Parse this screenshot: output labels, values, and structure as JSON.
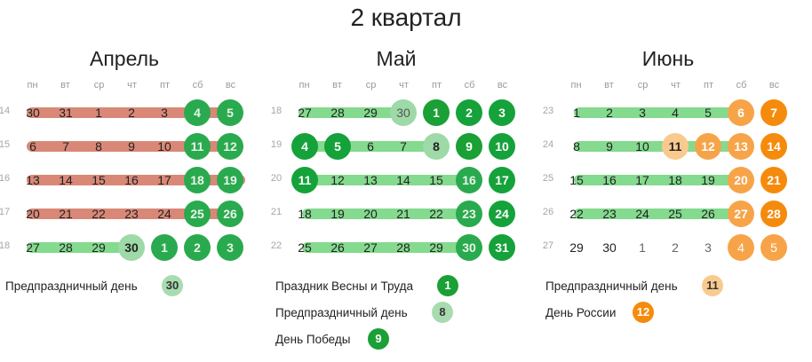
{
  "title": "2 квартал",
  "weekdays": [
    "пн",
    "вт",
    "ср",
    "чт",
    "пт",
    "сб",
    "вс"
  ],
  "months": [
    {
      "name": "Апрель",
      "weeks": [
        {
          "num": "14",
          "days": [
            "30",
            "31",
            "1",
            "2",
            "3",
            "4",
            "5"
          ]
        },
        {
          "num": "15",
          "days": [
            "6",
            "7",
            "8",
            "9",
            "10",
            "11",
            "12"
          ]
        },
        {
          "num": "16",
          "days": [
            "13",
            "14",
            "15",
            "16",
            "17",
            "18",
            "19"
          ]
        },
        {
          "num": "17",
          "days": [
            "20",
            "21",
            "22",
            "23",
            "24",
            "25",
            "26"
          ]
        },
        {
          "num": "18",
          "days": [
            "27",
            "28",
            "29",
            "30",
            "1",
            "2",
            "3"
          ]
        }
      ],
      "legend": [
        {
          "label": "Предпраздничный день",
          "badge": "30"
        }
      ]
    },
    {
      "name": "Май",
      "weeks": [
        {
          "num": "18",
          "days": [
            "27",
            "28",
            "29",
            "30",
            "1",
            "2",
            "3"
          ]
        },
        {
          "num": "19",
          "days": [
            "4",
            "5",
            "6",
            "7",
            "8",
            "9",
            "10"
          ]
        },
        {
          "num": "20",
          "days": [
            "11",
            "12",
            "13",
            "14",
            "15",
            "16",
            "17"
          ]
        },
        {
          "num": "21",
          "days": [
            "18",
            "19",
            "20",
            "21",
            "22",
            "23",
            "24"
          ]
        },
        {
          "num": "22",
          "days": [
            "25",
            "26",
            "27",
            "28",
            "29",
            "30",
            "31"
          ]
        }
      ],
      "legend": [
        {
          "label": "Праздник Весны и Труда",
          "badge": "1"
        },
        {
          "label": "Предпраздничный день",
          "badge": "8"
        },
        {
          "label": "День Победы",
          "badge": "9"
        }
      ]
    },
    {
      "name": "Июнь",
      "weeks": [
        {
          "num": "23",
          "days": [
            "1",
            "2",
            "3",
            "4",
            "5",
            "6",
            "7"
          ]
        },
        {
          "num": "24",
          "days": [
            "8",
            "9",
            "10",
            "11",
            "12",
            "13",
            "14"
          ]
        },
        {
          "num": "25",
          "days": [
            "15",
            "16",
            "17",
            "18",
            "19",
            "20",
            "21"
          ]
        },
        {
          "num": "26",
          "days": [
            "22",
            "23",
            "24",
            "25",
            "26",
            "27",
            "28"
          ]
        },
        {
          "num": "27",
          "days": [
            "29",
            "30",
            "1",
            "2",
            "3",
            "4",
            "5"
          ]
        }
      ],
      "legend": [
        {
          "label": "Предпраздничный день",
          "badge": "11"
        },
        {
          "label": "День России",
          "badge": "12"
        }
      ]
    }
  ],
  "colors": {
    "off_green": "#15a23a",
    "preholiday_green": "#9ed9a8",
    "off_orange": "#f58b0c",
    "preholiday_orange": "#f9ca8e",
    "stroke_red": "#d06a55",
    "stroke_green": "#6fd37a"
  }
}
